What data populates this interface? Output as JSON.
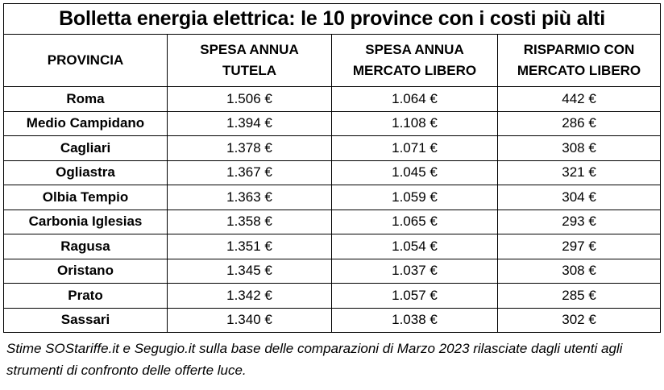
{
  "title": "Bolletta energia elettrica: le 10 province con i costi più alti",
  "headers": {
    "provincia": "PROVINCIA",
    "tutela": [
      "SPESA ANNUA",
      "TUTELA"
    ],
    "mercato": [
      "SPESA ANNUA",
      "MERCATO LIBERO"
    ],
    "risparmio": [
      "RISPARMIO CON",
      "MERCATO LIBERO"
    ]
  },
  "rows": [
    {
      "provincia": "Roma",
      "tutela": "1.506 €",
      "mercato": "1.064 €",
      "risparmio": "442 €"
    },
    {
      "provincia": "Medio Campidano",
      "tutela": "1.394 €",
      "mercato": "1.108 €",
      "risparmio": "286 €"
    },
    {
      "provincia": "Cagliari",
      "tutela": "1.378 €",
      "mercato": "1.071 €",
      "risparmio": "308 €"
    },
    {
      "provincia": "Ogliastra",
      "tutela": "1.367 €",
      "mercato": "1.045 €",
      "risparmio": "321 €"
    },
    {
      "provincia": "Olbia Tempio",
      "tutela": "1.363 €",
      "mercato": "1.059 €",
      "risparmio": "304 €"
    },
    {
      "provincia": "Carbonia Iglesias",
      "tutela": "1.358 €",
      "mercato": "1.065 €",
      "risparmio": "293 €"
    },
    {
      "provincia": "Ragusa",
      "tutela": "1.351 €",
      "mercato": "1.054 €",
      "risparmio": "297 €"
    },
    {
      "provincia": "Oristano",
      "tutela": "1.345 €",
      "mercato": "1.037 €",
      "risparmio": "308 €"
    },
    {
      "provincia": "Prato",
      "tutela": "1.342 €",
      "mercato": "1.057 €",
      "risparmio": "285 €"
    },
    {
      "provincia": "Sassari",
      "tutela": "1.340 €",
      "mercato": "1.038 €",
      "risparmio": "302 €"
    }
  ],
  "note": "Stime SOStariffe.it e Segugio.it sulla base delle comparazioni di Marzo 2023 rilasciate dagli utenti agli strumenti di confronto delle offerte luce."
}
